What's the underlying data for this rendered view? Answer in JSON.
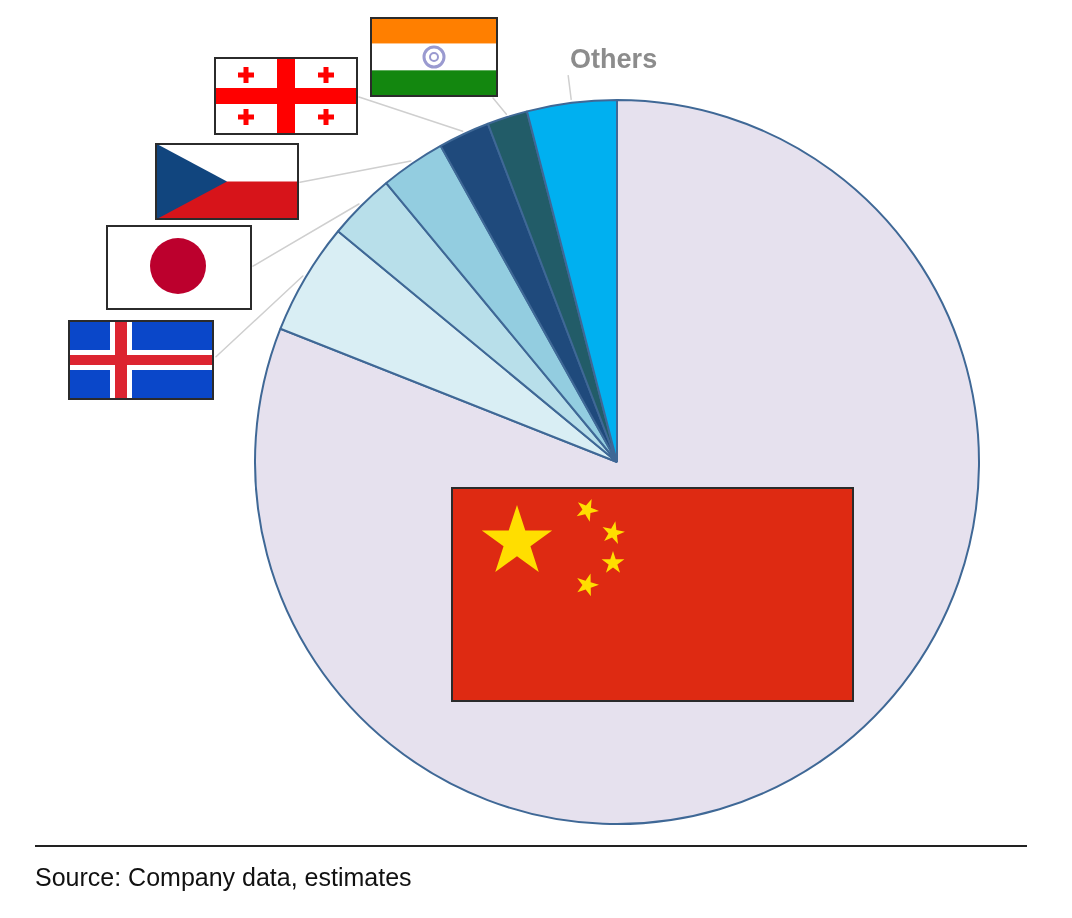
{
  "chart_data": {
    "type": "pie",
    "categories": [
      null,
      null,
      null,
      null,
      null,
      null,
      "Others"
    ],
    "values": [
      81,
      5,
      3,
      2.9,
      2.3,
      1.8,
      4.0
    ],
    "colors": [
      "#e6e1ee",
      "#d9eef4",
      "#b8dfea",
      "#93cde0",
      "#1f4a7c",
      "#225c68",
      "#00b0f0"
    ],
    "annotations": [
      "Source: Company data, estimates"
    ]
  }
}
